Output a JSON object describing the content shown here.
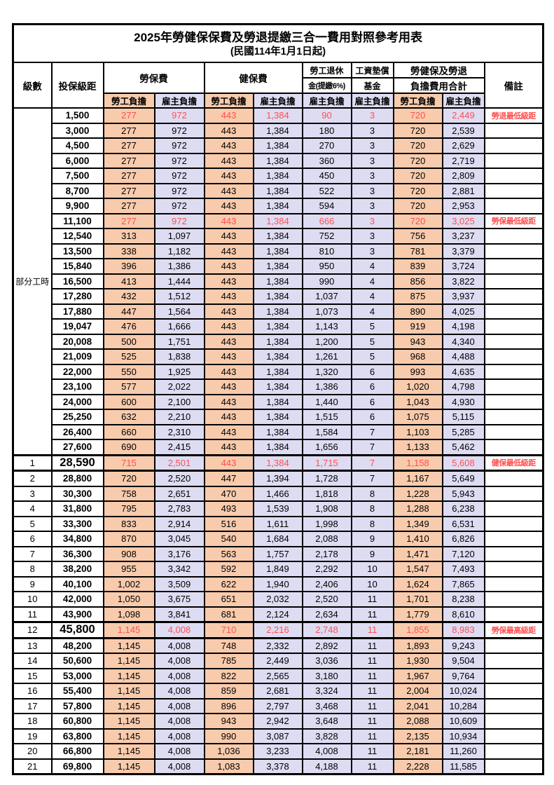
{
  "title": {
    "line1": "2025年勞健保保費及勞退提繳三合一費用對照參考用表",
    "line2": "(民國114年1月1日起)"
  },
  "header": {
    "level": "級數",
    "bracket": "投保級距",
    "labor": "勞保費",
    "health": "健保費",
    "pension_l1": "勞工退休",
    "pension_l2": "金(提繳6%)",
    "wage_l1": "工資墊償",
    "wage_l2": "基金",
    "total_l1": "勞健保及勞退",
    "total_l2": "負擔費用合計",
    "remark": "備註",
    "employee": "勞工負擔",
    "employer": "雇主負擔"
  },
  "colors": {
    "employee_bg": "#F8CBAD",
    "employer_bg": "#DEDCF2",
    "highlight_text": "#FF5050",
    "border": "#000000"
  },
  "table": {
    "part_time_label": "部分工時",
    "part_time_rowspan": 23,
    "column_pattern": [
      "emp",
      "er",
      "emp",
      "er",
      "er",
      "er",
      "emp",
      "er"
    ],
    "rows": [
      {
        "level": "",
        "bracket": "1,500",
        "values": [
          "277",
          "972",
          "443",
          "1,384",
          "90",
          "3",
          "720",
          "2,449"
        ],
        "remark": "勞退最低級距",
        "highlight": true
      },
      {
        "level": "",
        "bracket": "3,000",
        "values": [
          "277",
          "972",
          "443",
          "1,384",
          "180",
          "3",
          "720",
          "2,539"
        ],
        "remark": ""
      },
      {
        "level": "",
        "bracket": "4,500",
        "values": [
          "277",
          "972",
          "443",
          "1,384",
          "270",
          "3",
          "720",
          "2,629"
        ],
        "remark": ""
      },
      {
        "level": "",
        "bracket": "6,000",
        "values": [
          "277",
          "972",
          "443",
          "1,384",
          "360",
          "3",
          "720",
          "2,719"
        ],
        "remark": ""
      },
      {
        "level": "",
        "bracket": "7,500",
        "values": [
          "277",
          "972",
          "443",
          "1,384",
          "450",
          "3",
          "720",
          "2,809"
        ],
        "remark": ""
      },
      {
        "level": "",
        "bracket": "8,700",
        "values": [
          "277",
          "972",
          "443",
          "1,384",
          "522",
          "3",
          "720",
          "2,881"
        ],
        "remark": ""
      },
      {
        "level": "",
        "bracket": "9,900",
        "values": [
          "277",
          "972",
          "443",
          "1,384",
          "594",
          "3",
          "720",
          "2,953"
        ],
        "remark": ""
      },
      {
        "level": "",
        "bracket": "11,100",
        "values": [
          "277",
          "972",
          "443",
          "1,384",
          "666",
          "3",
          "720",
          "3,025"
        ],
        "remark": "勞保最低級距",
        "highlight": true
      },
      {
        "level": "",
        "bracket": "12,540",
        "values": [
          "313",
          "1,097",
          "443",
          "1,384",
          "752",
          "3",
          "756",
          "3,237"
        ],
        "remark": ""
      },
      {
        "level": "",
        "bracket": "13,500",
        "values": [
          "338",
          "1,182",
          "443",
          "1,384",
          "810",
          "3",
          "781",
          "3,379"
        ],
        "remark": ""
      },
      {
        "level": "",
        "bracket": "15,840",
        "values": [
          "396",
          "1,386",
          "443",
          "1,384",
          "950",
          "4",
          "839",
          "3,724"
        ],
        "remark": ""
      },
      {
        "level": "",
        "bracket": "16,500",
        "values": [
          "413",
          "1,444",
          "443",
          "1,384",
          "990",
          "4",
          "856",
          "3,822"
        ],
        "remark": ""
      },
      {
        "level": "",
        "bracket": "17,280",
        "values": [
          "432",
          "1,512",
          "443",
          "1,384",
          "1,037",
          "4",
          "875",
          "3,937"
        ],
        "remark": ""
      },
      {
        "level": "",
        "bracket": "17,880",
        "values": [
          "447",
          "1,564",
          "443",
          "1,384",
          "1,073",
          "4",
          "890",
          "4,025"
        ],
        "remark": ""
      },
      {
        "level": "",
        "bracket": "19,047",
        "values": [
          "476",
          "1,666",
          "443",
          "1,384",
          "1,143",
          "5",
          "919",
          "4,198"
        ],
        "remark": ""
      },
      {
        "level": "",
        "bracket": "20,008",
        "values": [
          "500",
          "1,751",
          "443",
          "1,384",
          "1,200",
          "5",
          "943",
          "4,340"
        ],
        "remark": ""
      },
      {
        "level": "",
        "bracket": "21,009",
        "values": [
          "525",
          "1,838",
          "443",
          "1,384",
          "1,261",
          "5",
          "968",
          "4,488"
        ],
        "remark": ""
      },
      {
        "level": "",
        "bracket": "22,000",
        "values": [
          "550",
          "1,925",
          "443",
          "1,384",
          "1,320",
          "6",
          "993",
          "4,635"
        ],
        "remark": ""
      },
      {
        "level": "",
        "bracket": "23,100",
        "values": [
          "577",
          "2,022",
          "443",
          "1,384",
          "1,386",
          "6",
          "1,020",
          "4,798"
        ],
        "remark": ""
      },
      {
        "level": "",
        "bracket": "24,000",
        "values": [
          "600",
          "2,100",
          "443",
          "1,384",
          "1,440",
          "6",
          "1,043",
          "4,930"
        ],
        "remark": ""
      },
      {
        "level": "",
        "bracket": "25,250",
        "values": [
          "632",
          "2,210",
          "443",
          "1,384",
          "1,515",
          "6",
          "1,075",
          "5,115"
        ],
        "remark": ""
      },
      {
        "level": "",
        "bracket": "26,400",
        "values": [
          "660",
          "2,310",
          "443",
          "1,384",
          "1,584",
          "7",
          "1,103",
          "5,285"
        ],
        "remark": ""
      },
      {
        "level": "",
        "bracket": "27,600",
        "values": [
          "690",
          "2,415",
          "443",
          "1,384",
          "1,656",
          "7",
          "1,133",
          "5,462"
        ],
        "remark": ""
      },
      {
        "level": "1",
        "bracket": "28,590",
        "values": [
          "715",
          "2,501",
          "443",
          "1,384",
          "1,715",
          "7",
          "1,158",
          "5,608"
        ],
        "remark": "健保最低級距",
        "highlight": true,
        "big": true
      },
      {
        "level": "2",
        "bracket": "28,800",
        "values": [
          "720",
          "2,520",
          "447",
          "1,394",
          "1,728",
          "7",
          "1,167",
          "5,649"
        ],
        "remark": ""
      },
      {
        "level": "3",
        "bracket": "30,300",
        "values": [
          "758",
          "2,651",
          "470",
          "1,466",
          "1,818",
          "8",
          "1,228",
          "5,943"
        ],
        "remark": ""
      },
      {
        "level": "4",
        "bracket": "31,800",
        "values": [
          "795",
          "2,783",
          "493",
          "1,539",
          "1,908",
          "8",
          "1,288",
          "6,238"
        ],
        "remark": ""
      },
      {
        "level": "5",
        "bracket": "33,300",
        "values": [
          "833",
          "2,914",
          "516",
          "1,611",
          "1,998",
          "8",
          "1,349",
          "6,531"
        ],
        "remark": ""
      },
      {
        "level": "6",
        "bracket": "34,800",
        "values": [
          "870",
          "3,045",
          "540",
          "1,684",
          "2,088",
          "9",
          "1,410",
          "6,826"
        ],
        "remark": ""
      },
      {
        "level": "7",
        "bracket": "36,300",
        "values": [
          "908",
          "3,176",
          "563",
          "1,757",
          "2,178",
          "9",
          "1,471",
          "7,120"
        ],
        "remark": ""
      },
      {
        "level": "8",
        "bracket": "38,200",
        "values": [
          "955",
          "3,342",
          "592",
          "1,849",
          "2,292",
          "10",
          "1,547",
          "7,493"
        ],
        "remark": ""
      },
      {
        "level": "9",
        "bracket": "40,100",
        "values": [
          "1,002",
          "3,509",
          "622",
          "1,940",
          "2,406",
          "10",
          "1,624",
          "7,865"
        ],
        "remark": ""
      },
      {
        "level": "10",
        "bracket": "42,000",
        "values": [
          "1,050",
          "3,675",
          "651",
          "2,032",
          "2,520",
          "11",
          "1,701",
          "8,238"
        ],
        "remark": ""
      },
      {
        "level": "11",
        "bracket": "43,900",
        "values": [
          "1,098",
          "3,841",
          "681",
          "2,124",
          "2,634",
          "11",
          "1,779",
          "8,610"
        ],
        "remark": ""
      },
      {
        "level": "12",
        "bracket": "45,800",
        "values": [
          "1,145",
          "4,008",
          "710",
          "2,216",
          "2,748",
          "11",
          "1,855",
          "8,983"
        ],
        "remark": "勞保最高級距",
        "highlight": true,
        "big": true
      },
      {
        "level": "13",
        "bracket": "48,200",
        "values": [
          "1,145",
          "4,008",
          "748",
          "2,332",
          "2,892",
          "11",
          "1,893",
          "9,243"
        ],
        "remark": ""
      },
      {
        "level": "14",
        "bracket": "50,600",
        "values": [
          "1,145",
          "4,008",
          "785",
          "2,449",
          "3,036",
          "11",
          "1,930",
          "9,504"
        ],
        "remark": ""
      },
      {
        "level": "15",
        "bracket": "53,000",
        "values": [
          "1,145",
          "4,008",
          "822",
          "2,565",
          "3,180",
          "11",
          "1,967",
          "9,764"
        ],
        "remark": ""
      },
      {
        "level": "16",
        "bracket": "55,400",
        "values": [
          "1,145",
          "4,008",
          "859",
          "2,681",
          "3,324",
          "11",
          "2,004",
          "10,024"
        ],
        "remark": ""
      },
      {
        "level": "17",
        "bracket": "57,800",
        "values": [
          "1,145",
          "4,008",
          "896",
          "2,797",
          "3,468",
          "11",
          "2,041",
          "10,284"
        ],
        "remark": ""
      },
      {
        "level": "18",
        "bracket": "60,800",
        "values": [
          "1,145",
          "4,008",
          "943",
          "2,942",
          "3,648",
          "11",
          "2,088",
          "10,609"
        ],
        "remark": ""
      },
      {
        "level": "19",
        "bracket": "63,800",
        "values": [
          "1,145",
          "4,008",
          "990",
          "3,087",
          "3,828",
          "11",
          "2,135",
          "10,934"
        ],
        "remark": ""
      },
      {
        "level": "20",
        "bracket": "66,800",
        "values": [
          "1,145",
          "4,008",
          "1,036",
          "3,233",
          "4,008",
          "11",
          "2,181",
          "11,260"
        ],
        "remark": ""
      },
      {
        "level": "21",
        "bracket": "69,800",
        "values": [
          "1,145",
          "4,008",
          "1,083",
          "3,378",
          "4,188",
          "11",
          "2,228",
          "11,585"
        ],
        "remark": ""
      }
    ]
  }
}
